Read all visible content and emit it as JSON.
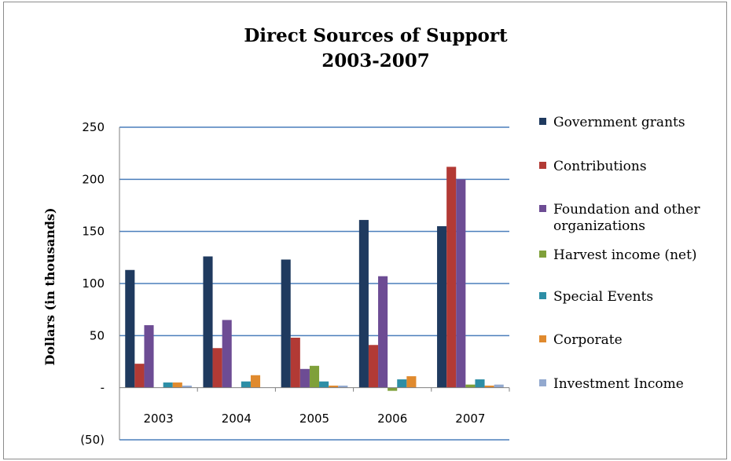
{
  "chart_data": {
    "type": "bar",
    "title": "Direct Sources of Support",
    "subtitle": "2003-2007",
    "ylabel": "Dollars (in thousands)",
    "ylim": [
      -50,
      250
    ],
    "yticks": [
      {
        "value": 250,
        "label": "250"
      },
      {
        "value": 200,
        "label": "200"
      },
      {
        "value": 150,
        "label": "150"
      },
      {
        "value": 100,
        "label": "100"
      },
      {
        "value": 50,
        "label": "50"
      },
      {
        "value": 0,
        "label": "-"
      },
      {
        "value": -50,
        "label": "(50)"
      }
    ],
    "categories": [
      "2003",
      "2004",
      "2005",
      "2006",
      "2007"
    ],
    "grid": true,
    "legend_position": "right",
    "series": [
      {
        "name": "Government grants",
        "color": "#1f3a5f",
        "values": [
          113,
          126,
          123,
          161,
          155
        ]
      },
      {
        "name": "Contributions",
        "color": "#b23a35",
        "values": [
          23,
          38,
          48,
          41,
          212
        ]
      },
      {
        "name": "Foundation and other organizations",
        "color": "#6d4c94",
        "values": [
          60,
          65,
          18,
          107,
          200
        ]
      },
      {
        "name": "Harvest income (net)",
        "color": "#7fa03a",
        "values": [
          0,
          0,
          21,
          -3,
          3
        ]
      },
      {
        "name": "Special Events",
        "color": "#2d8ea6",
        "values": [
          5,
          6,
          6,
          8,
          8
        ]
      },
      {
        "name": "Corporate",
        "color": "#e08a2e",
        "values": [
          5,
          12,
          2,
          11,
          2
        ]
      },
      {
        "name": "Investment Income",
        "color": "#93a9cf",
        "values": [
          2,
          0,
          2,
          0,
          3
        ]
      }
    ],
    "legend_lines": [
      [
        "Government grants"
      ],
      [
        "Contributions"
      ],
      [
        "Foundation and other",
        "organizations"
      ],
      [
        "Harvest income (net)"
      ],
      [
        "Special Events"
      ],
      [
        "Corporate"
      ],
      [
        "Investment Income"
      ]
    ]
  }
}
